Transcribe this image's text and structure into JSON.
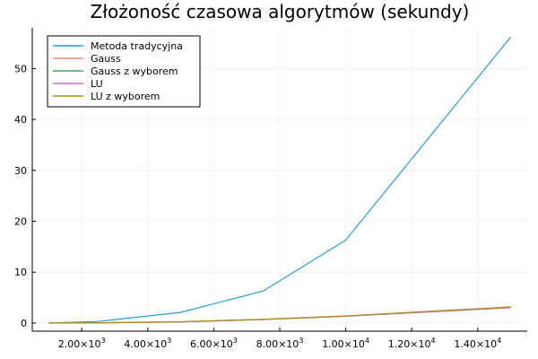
{
  "chart_data": {
    "type": "line",
    "title": "Złożoność czasowa algorytmów (sekundy)",
    "xlabel": "",
    "ylabel": "",
    "xlim": [
      500,
      15500
    ],
    "ylim": [
      -1.6,
      58
    ],
    "x_ticks": [
      {
        "value": 2000,
        "mantissa": "2.00",
        "exp": "3"
      },
      {
        "value": 4000,
        "mantissa": "4.00",
        "exp": "3"
      },
      {
        "value": 6000,
        "mantissa": "6.00",
        "exp": "3"
      },
      {
        "value": 8000,
        "mantissa": "8.00",
        "exp": "3"
      },
      {
        "value": 10000,
        "mantissa": "1.00",
        "exp": "4"
      },
      {
        "value": 12000,
        "mantissa": "1.20",
        "exp": "4"
      },
      {
        "value": 14000,
        "mantissa": "1.40",
        "exp": "4"
      }
    ],
    "y_ticks": [
      0,
      10,
      20,
      30,
      40,
      50
    ],
    "grid": true,
    "legend_position": "top-left",
    "x": [
      1000,
      2500,
      5000,
      7500,
      10000,
      15000
    ],
    "series": [
      {
        "name": "Metoda tradycyjna",
        "color": "#1f9ee0",
        "values": [
          0.02,
          0.3,
          2.1,
          6.3,
          16.3,
          56.2
        ]
      },
      {
        "name": "Gauss",
        "color": "#e9866c",
        "values": [
          0.0,
          0.05,
          0.25,
          0.75,
          1.4,
          3.2
        ]
      },
      {
        "name": "Gauss z wyborem",
        "color": "#3aa855",
        "values": [
          0.0,
          0.04,
          0.22,
          0.7,
          1.35,
          3.05
        ]
      },
      {
        "name": "LU",
        "color": "#c671d8",
        "values": [
          0.0,
          0.04,
          0.22,
          0.7,
          1.33,
          3.0
        ]
      },
      {
        "name": "LU z wyborem",
        "color": "#ad8f17",
        "values": [
          0.0,
          0.04,
          0.23,
          0.72,
          1.36,
          3.1
        ]
      }
    ]
  }
}
